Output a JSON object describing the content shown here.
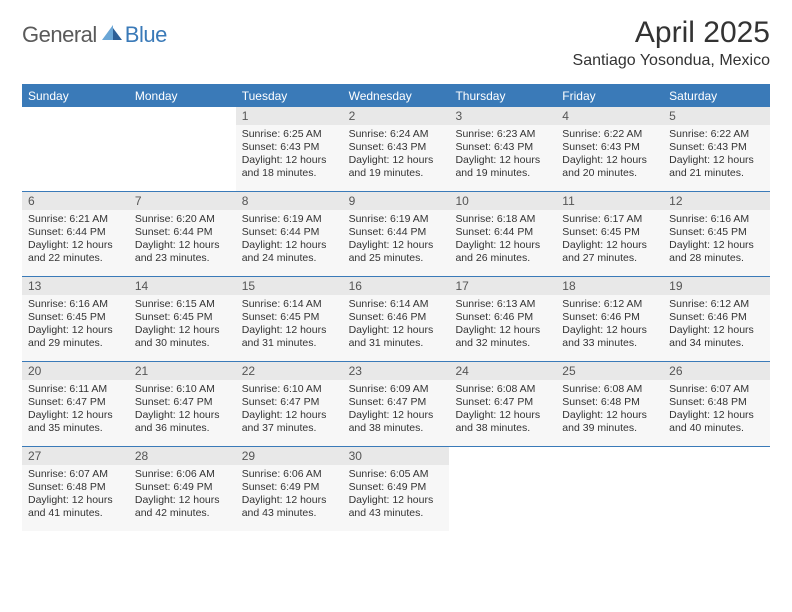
{
  "logo": {
    "text_general": "General",
    "text_blue": "Blue",
    "icon_fill_light": "#6aa6d6",
    "icon_fill_dark": "#2d5f96"
  },
  "title": "April 2025",
  "location": "Santiago Yosondua, Mexico",
  "colors": {
    "header_bg": "#3a7ab8",
    "header_text": "#ffffff",
    "daynum_bg": "#e8e8e8",
    "daybody_bg": "#f7f7f7",
    "text": "#333333",
    "border": "#3a7ab8"
  },
  "weekdays": [
    "Sunday",
    "Monday",
    "Tuesday",
    "Wednesday",
    "Thursday",
    "Friday",
    "Saturday"
  ],
  "weeks": [
    [
      {
        "day": "",
        "sunrise": "",
        "sunset": "",
        "daylight": ""
      },
      {
        "day": "",
        "sunrise": "",
        "sunset": "",
        "daylight": ""
      },
      {
        "day": "1",
        "sunrise": "Sunrise: 6:25 AM",
        "sunset": "Sunset: 6:43 PM",
        "daylight": "Daylight: 12 hours and 18 minutes."
      },
      {
        "day": "2",
        "sunrise": "Sunrise: 6:24 AM",
        "sunset": "Sunset: 6:43 PM",
        "daylight": "Daylight: 12 hours and 19 minutes."
      },
      {
        "day": "3",
        "sunrise": "Sunrise: 6:23 AM",
        "sunset": "Sunset: 6:43 PM",
        "daylight": "Daylight: 12 hours and 19 minutes."
      },
      {
        "day": "4",
        "sunrise": "Sunrise: 6:22 AM",
        "sunset": "Sunset: 6:43 PM",
        "daylight": "Daylight: 12 hours and 20 minutes."
      },
      {
        "day": "5",
        "sunrise": "Sunrise: 6:22 AM",
        "sunset": "Sunset: 6:43 PM",
        "daylight": "Daylight: 12 hours and 21 minutes."
      }
    ],
    [
      {
        "day": "6",
        "sunrise": "Sunrise: 6:21 AM",
        "sunset": "Sunset: 6:44 PM",
        "daylight": "Daylight: 12 hours and 22 minutes."
      },
      {
        "day": "7",
        "sunrise": "Sunrise: 6:20 AM",
        "sunset": "Sunset: 6:44 PM",
        "daylight": "Daylight: 12 hours and 23 minutes."
      },
      {
        "day": "8",
        "sunrise": "Sunrise: 6:19 AM",
        "sunset": "Sunset: 6:44 PM",
        "daylight": "Daylight: 12 hours and 24 minutes."
      },
      {
        "day": "9",
        "sunrise": "Sunrise: 6:19 AM",
        "sunset": "Sunset: 6:44 PM",
        "daylight": "Daylight: 12 hours and 25 minutes."
      },
      {
        "day": "10",
        "sunrise": "Sunrise: 6:18 AM",
        "sunset": "Sunset: 6:44 PM",
        "daylight": "Daylight: 12 hours and 26 minutes."
      },
      {
        "day": "11",
        "sunrise": "Sunrise: 6:17 AM",
        "sunset": "Sunset: 6:45 PM",
        "daylight": "Daylight: 12 hours and 27 minutes."
      },
      {
        "day": "12",
        "sunrise": "Sunrise: 6:16 AM",
        "sunset": "Sunset: 6:45 PM",
        "daylight": "Daylight: 12 hours and 28 minutes."
      }
    ],
    [
      {
        "day": "13",
        "sunrise": "Sunrise: 6:16 AM",
        "sunset": "Sunset: 6:45 PM",
        "daylight": "Daylight: 12 hours and 29 minutes."
      },
      {
        "day": "14",
        "sunrise": "Sunrise: 6:15 AM",
        "sunset": "Sunset: 6:45 PM",
        "daylight": "Daylight: 12 hours and 30 minutes."
      },
      {
        "day": "15",
        "sunrise": "Sunrise: 6:14 AM",
        "sunset": "Sunset: 6:45 PM",
        "daylight": "Daylight: 12 hours and 31 minutes."
      },
      {
        "day": "16",
        "sunrise": "Sunrise: 6:14 AM",
        "sunset": "Sunset: 6:46 PM",
        "daylight": "Daylight: 12 hours and 31 minutes."
      },
      {
        "day": "17",
        "sunrise": "Sunrise: 6:13 AM",
        "sunset": "Sunset: 6:46 PM",
        "daylight": "Daylight: 12 hours and 32 minutes."
      },
      {
        "day": "18",
        "sunrise": "Sunrise: 6:12 AM",
        "sunset": "Sunset: 6:46 PM",
        "daylight": "Daylight: 12 hours and 33 minutes."
      },
      {
        "day": "19",
        "sunrise": "Sunrise: 6:12 AM",
        "sunset": "Sunset: 6:46 PM",
        "daylight": "Daylight: 12 hours and 34 minutes."
      }
    ],
    [
      {
        "day": "20",
        "sunrise": "Sunrise: 6:11 AM",
        "sunset": "Sunset: 6:47 PM",
        "daylight": "Daylight: 12 hours and 35 minutes."
      },
      {
        "day": "21",
        "sunrise": "Sunrise: 6:10 AM",
        "sunset": "Sunset: 6:47 PM",
        "daylight": "Daylight: 12 hours and 36 minutes."
      },
      {
        "day": "22",
        "sunrise": "Sunrise: 6:10 AM",
        "sunset": "Sunset: 6:47 PM",
        "daylight": "Daylight: 12 hours and 37 minutes."
      },
      {
        "day": "23",
        "sunrise": "Sunrise: 6:09 AM",
        "sunset": "Sunset: 6:47 PM",
        "daylight": "Daylight: 12 hours and 38 minutes."
      },
      {
        "day": "24",
        "sunrise": "Sunrise: 6:08 AM",
        "sunset": "Sunset: 6:47 PM",
        "daylight": "Daylight: 12 hours and 38 minutes."
      },
      {
        "day": "25",
        "sunrise": "Sunrise: 6:08 AM",
        "sunset": "Sunset: 6:48 PM",
        "daylight": "Daylight: 12 hours and 39 minutes."
      },
      {
        "day": "26",
        "sunrise": "Sunrise: 6:07 AM",
        "sunset": "Sunset: 6:48 PM",
        "daylight": "Daylight: 12 hours and 40 minutes."
      }
    ],
    [
      {
        "day": "27",
        "sunrise": "Sunrise: 6:07 AM",
        "sunset": "Sunset: 6:48 PM",
        "daylight": "Daylight: 12 hours and 41 minutes."
      },
      {
        "day": "28",
        "sunrise": "Sunrise: 6:06 AM",
        "sunset": "Sunset: 6:49 PM",
        "daylight": "Daylight: 12 hours and 42 minutes."
      },
      {
        "day": "29",
        "sunrise": "Sunrise: 6:06 AM",
        "sunset": "Sunset: 6:49 PM",
        "daylight": "Daylight: 12 hours and 43 minutes."
      },
      {
        "day": "30",
        "sunrise": "Sunrise: 6:05 AM",
        "sunset": "Sunset: 6:49 PM",
        "daylight": "Daylight: 12 hours and 43 minutes."
      },
      {
        "day": "",
        "sunrise": "",
        "sunset": "",
        "daylight": ""
      },
      {
        "day": "",
        "sunrise": "",
        "sunset": "",
        "daylight": ""
      },
      {
        "day": "",
        "sunrise": "",
        "sunset": "",
        "daylight": ""
      }
    ]
  ]
}
